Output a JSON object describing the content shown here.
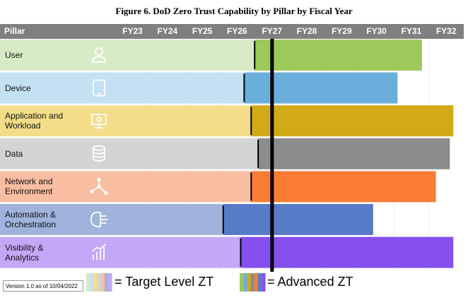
{
  "title": "Figure 6. DoD Zero Trust Capability by Pillar by Fiscal Year",
  "version_note": "Version 1.0 as of 10/04/2022",
  "legend": {
    "target_label": "= Target Level ZT",
    "advanced_label": "= Advanced ZT"
  },
  "chart_data": {
    "type": "bar",
    "orientation": "horizontal",
    "header_label": "Pillar",
    "fiscal_years": [
      "FY23",
      "FY24",
      "FY25",
      "FY26",
      "FY27",
      "FY28",
      "FY29",
      "FY30",
      "FY31",
      "FY32"
    ],
    "milestone_fy": 27.5,
    "pillars": [
      {
        "label": "User",
        "target_end_fy": 27.0,
        "end_fy": 31.8,
        "icon": "user-icon",
        "light": "#d8ebc7",
        "dark": "#9dc85a"
      },
      {
        "label": "Device",
        "target_end_fy": 26.7,
        "end_fy": 31.1,
        "icon": "device-icon",
        "light": "#c4e1f4",
        "dark": "#6aaedc"
      },
      {
        "label": "Application and\nWorkload",
        "target_end_fy": 26.9,
        "end_fy": 32.7,
        "icon": "application-icon",
        "light": "#f4dd89",
        "dark": "#d2a919"
      },
      {
        "label": "Data",
        "target_end_fy": 27.1,
        "end_fy": 32.6,
        "icon": "data-icon",
        "light": "#d4d4d4",
        "dark": "#8c8c8c"
      },
      {
        "label": "Network and\nEnvironment",
        "target_end_fy": 26.9,
        "end_fy": 32.2,
        "icon": "network-icon",
        "light": "#f9bda2",
        "dark": "#fb7c35"
      },
      {
        "label": "Automation &\nOrchestration",
        "target_end_fy": 26.1,
        "end_fy": 30.4,
        "icon": "automation-icon",
        "light": "#9fb3dc",
        "dark": "#587bc8"
      },
      {
        "label": "Visibility &\nAnalytics",
        "target_end_fy": 26.6,
        "end_fy": 32.7,
        "icon": "analytics-icon",
        "light": "#c4a7f8",
        "dark": "#8650ee"
      }
    ],
    "colors": {
      "header": "#7f7f7f"
    }
  }
}
